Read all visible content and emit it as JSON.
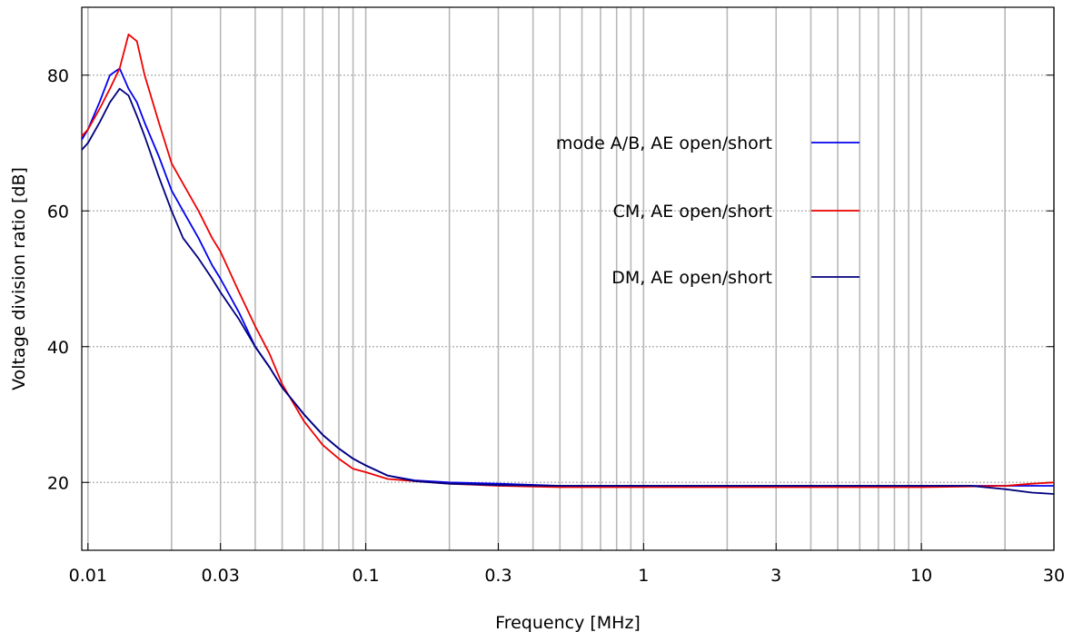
{
  "chart_data": {
    "type": "line",
    "xscale": "log",
    "xlim": [
      0.0095,
      30
    ],
    "ylim": [
      10,
      90
    ],
    "xlabel": "Frequency [MHz]",
    "ylabel": "Voltage division ratio [dB]",
    "x_ticks": [
      {
        "value": 0.01,
        "label": "0.01"
      },
      {
        "value": 0.03,
        "label": "0.03"
      },
      {
        "value": 0.1,
        "label": "0.1"
      },
      {
        "value": 0.3,
        "label": "0.3"
      },
      {
        "value": 1,
        "label": "1"
      },
      {
        "value": 3,
        "label": "3"
      },
      {
        "value": 10,
        "label": "10"
      },
      {
        "value": 30,
        "label": "30"
      }
    ],
    "y_ticks": [
      {
        "value": 20,
        "label": "20"
      },
      {
        "value": 40,
        "label": "40"
      },
      {
        "value": 60,
        "label": "60"
      },
      {
        "value": 80,
        "label": "80"
      }
    ],
    "grid": true,
    "legend_position": "upper-right",
    "series": [
      {
        "name": "mode A/B, AE open/short",
        "color": "#0000ee",
        "x": [
          0.0095,
          0.01,
          0.011,
          0.012,
          0.013,
          0.014,
          0.015,
          0.016,
          0.018,
          0.02,
          0.022,
          0.025,
          0.028,
          0.03,
          0.035,
          0.04,
          0.045,
          0.05,
          0.06,
          0.07,
          0.08,
          0.09,
          0.1,
          0.12,
          0.15,
          0.2,
          0.3,
          0.5,
          1,
          2,
          3,
          5,
          10,
          15,
          20,
          25,
          30
        ],
        "y": [
          70.5,
          72,
          76,
          80,
          81,
          78,
          76,
          73,
          68,
          63,
          60,
          56,
          52,
          50,
          45,
          40,
          37,
          34,
          30,
          27,
          25,
          23.5,
          22.5,
          21,
          20.3,
          20,
          19.8,
          19.5,
          19.5,
          19.5,
          19.5,
          19.5,
          19.5,
          19.5,
          19.5,
          19.5,
          19.5
        ]
      },
      {
        "name": "CM, AE open/short",
        "color": "#ee0000",
        "x": [
          0.0095,
          0.01,
          0.011,
          0.012,
          0.013,
          0.014,
          0.015,
          0.016,
          0.018,
          0.02,
          0.022,
          0.025,
          0.028,
          0.03,
          0.035,
          0.04,
          0.045,
          0.05,
          0.06,
          0.07,
          0.08,
          0.09,
          0.1,
          0.12,
          0.15,
          0.2,
          0.3,
          0.5,
          1,
          2,
          3,
          5,
          10,
          15,
          20,
          25,
          30
        ],
        "y": [
          71,
          72,
          75,
          78,
          81,
          86,
          85,
          80,
          73,
          67,
          64,
          60,
          56,
          54,
          48,
          43,
          39,
          34.5,
          29,
          25.5,
          23.5,
          22,
          21.5,
          20.5,
          20.2,
          19.8,
          19.5,
          19.3,
          19.3,
          19.3,
          19.3,
          19.3,
          19.3,
          19.4,
          19.5,
          19.8,
          20
        ]
      },
      {
        "name": "DM, AE open/short",
        "color": "#00007f",
        "x": [
          0.0095,
          0.01,
          0.011,
          0.012,
          0.013,
          0.014,
          0.015,
          0.016,
          0.018,
          0.02,
          0.022,
          0.025,
          0.028,
          0.03,
          0.035,
          0.04,
          0.045,
          0.05,
          0.06,
          0.07,
          0.08,
          0.09,
          0.1,
          0.12,
          0.15,
          0.2,
          0.3,
          0.5,
          1,
          2,
          3,
          5,
          10,
          15,
          20,
          25,
          30
        ],
        "y": [
          69,
          70,
          73,
          76,
          78,
          77,
          74,
          71,
          65,
          60,
          56,
          53,
          50,
          48,
          44,
          40,
          37,
          34,
          30,
          27,
          25,
          23.5,
          22.5,
          21,
          20.2,
          19.8,
          19.6,
          19.5,
          19.5,
          19.5,
          19.5,
          19.5,
          19.5,
          19.5,
          19,
          18.5,
          18.3
        ]
      }
    ]
  }
}
